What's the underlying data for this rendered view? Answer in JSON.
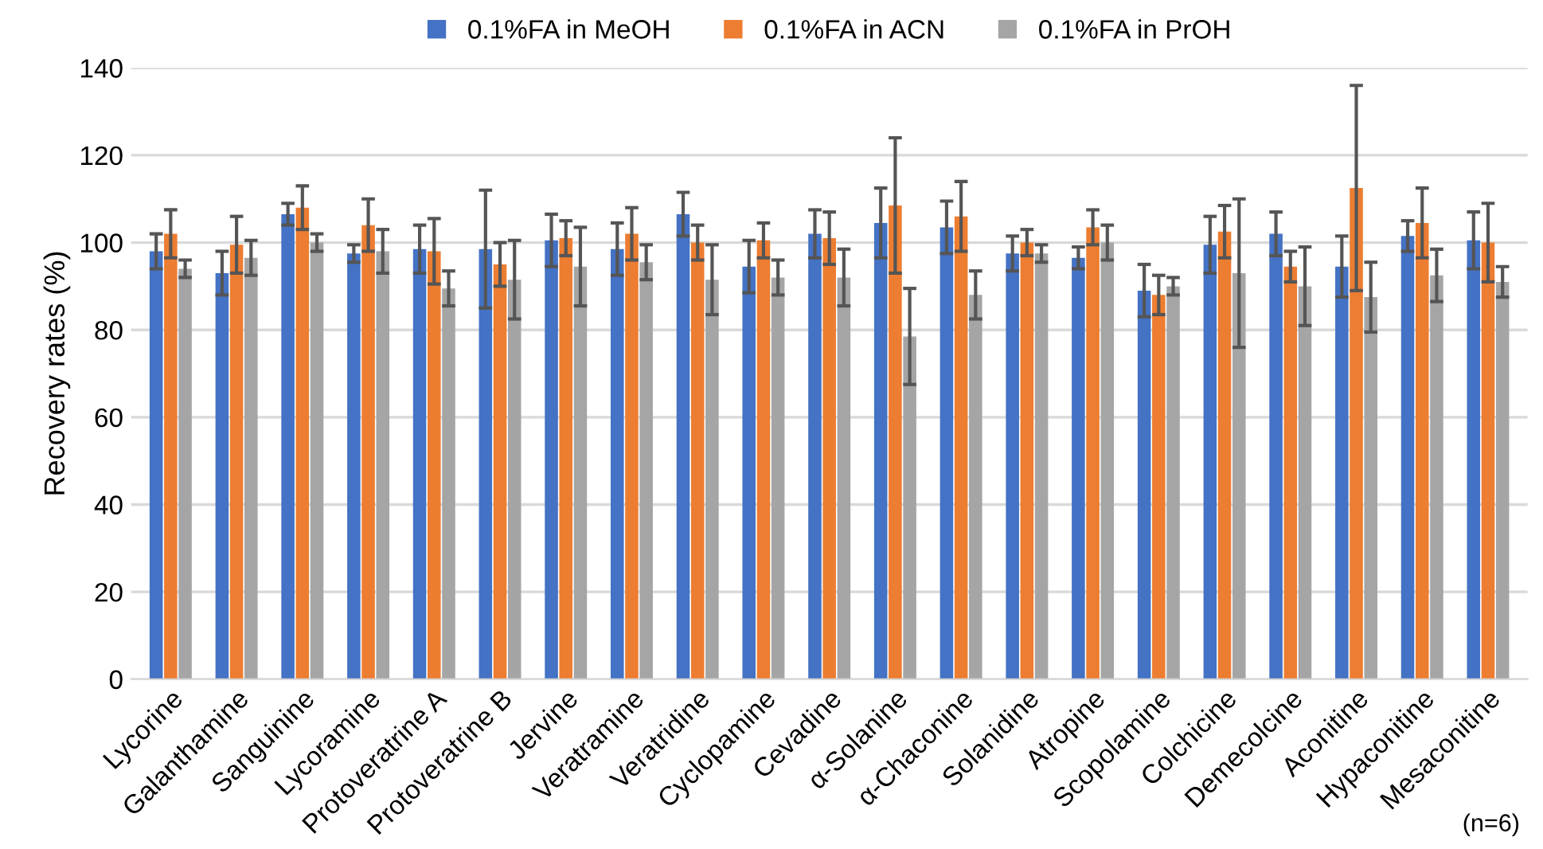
{
  "chart_data": {
    "type": "bar",
    "ylabel": "Recovery rates (%)",
    "categories": [
      "Lycorine",
      "Galanthamine",
      "Sanguinine",
      "Lycoramine",
      "Protoveratrine A",
      "Protoveratrine B",
      "Jervine",
      "Veratramine",
      "Veratridine",
      "Cyclopamine",
      "Cevadine",
      "α-Solanine",
      "α-Chaconine",
      "Solanidine",
      "Atropine",
      "Scopolamine",
      "Colchicine",
      "Demecolcine",
      "Aconitine",
      "Hypaconitine",
      "Mesaconitine"
    ],
    "series": [
      {
        "name": "0.1%FA in MeOH",
        "color": "#4472c4",
        "values": [
          98,
          93,
          106.5,
          97.5,
          98.5,
          98.5,
          100.5,
          98.5,
          106.5,
          94.5,
          102,
          104.5,
          103.5,
          97.5,
          96.5,
          89,
          99.5,
          102,
          94.5,
          101.5,
          100.5
        ],
        "errors": [
          4,
          5,
          2.5,
          2,
          5.5,
          13.5,
          6,
          6,
          5,
          6,
          5.5,
          8,
          6,
          4,
          2.5,
          6,
          6.5,
          5,
          7,
          3.5,
          6.5
        ]
      },
      {
        "name": "0.1%FA in ACN",
        "color": "#ed7d31",
        "values": [
          102,
          99.5,
          108,
          104,
          98,
          95,
          101,
          102,
          100,
          100.5,
          101,
          108.5,
          106,
          100,
          103.5,
          88,
          102.5,
          94.5,
          112.5,
          104.5,
          100
        ],
        "errors": [
          5.5,
          6.5,
          5,
          6,
          7.5,
          5,
          4,
          6,
          4,
          4,
          6,
          15.5,
          8,
          3,
          4,
          4.5,
          6,
          3.5,
          23.5,
          8,
          9
        ]
      },
      {
        "name": "0.1%FA in PrOH",
        "color": "#a5a5a5",
        "values": [
          94,
          96.5,
          100,
          98,
          89.5,
          91.5,
          94.5,
          95.5,
          91.5,
          92,
          92,
          78.5,
          88,
          97.5,
          100,
          90,
          93,
          90,
          87.5,
          92.5,
          91
        ],
        "errors": [
          2,
          4,
          2,
          5,
          4,
          9,
          9,
          4,
          8,
          4,
          6.5,
          11,
          5.5,
          2,
          4,
          2,
          17,
          9,
          8,
          6,
          3.5
        ]
      }
    ],
    "ylim": [
      0,
      140
    ],
    "yticks": [
      0,
      20,
      40,
      60,
      80,
      100,
      120,
      140
    ],
    "grid": "y",
    "legend": "top",
    "annotations": [
      "(n=6)"
    ]
  }
}
